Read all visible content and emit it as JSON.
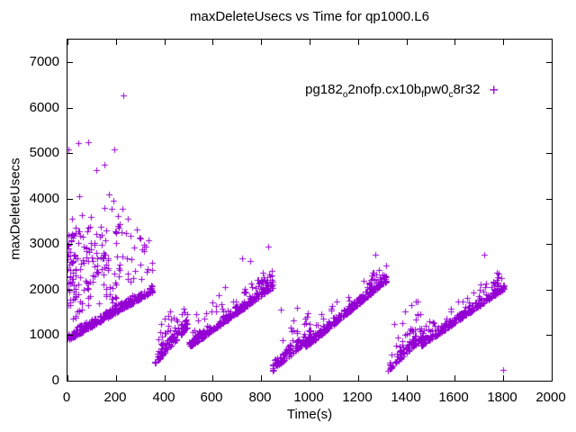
{
  "colors": {
    "background": "#ffffff",
    "axis": "#000000",
    "series_purple": "#9400D3"
  },
  "chart_data": {
    "type": "scatter",
    "title": "maxDeleteUsecs vs Time for qp1000.L6",
    "xlabel": "Time(s)",
    "ylabel": "maxDeleteUsecs",
    "xlim": [
      0,
      2000
    ],
    "ylim": [
      0,
      7500
    ],
    "xticks": [
      0,
      200,
      400,
      600,
      800,
      1000,
      1200,
      1400,
      1600,
      1800,
      2000
    ],
    "yticks": [
      0,
      1000,
      2000,
      3000,
      4000,
      5000,
      6000,
      7000
    ],
    "grid": false,
    "legend_position": "top-right-inside",
    "marker_glyph": "+",
    "marker_color": "#9400D3",
    "series": [
      {
        "name_parts": [
          {
            "text": "pg182"
          },
          {
            "sub": "o"
          },
          {
            "text": "2nofp.cx10b"
          },
          {
            "sub": "f"
          },
          {
            "text": "pw0"
          },
          {
            "sub": "c"
          },
          {
            "text": "8r32"
          }
        ],
        "color": "#9400D3",
        "pattern_note": "dense start cloud 0-350s then periodic sawtooth ramps; drops at ~350s, ~848s, ~1323s",
        "generator": {
          "seed": 42,
          "bands": [
            {
              "t0": 0,
              "t1": 352,
              "b0": 930,
              "b1": 2000,
              "d0": -45,
              "d1": 130,
              "p": 2.0,
              "n": 290
            },
            {
              "t0": 0,
              "t1": 35,
              "b0": 1350,
              "b1": 1380,
              "d0": 0,
              "d1": 2100,
              "p": 1.0,
              "n": 36
            },
            {
              "t0": 0,
              "t1": 228,
              "b0": 1420,
              "b1": 1700,
              "d0": 0,
              "d1": 1850,
              "p": 1.0,
              "n": 130
            },
            {
              "t0": 228,
              "t1": 352,
              "b0": 2050,
              "b1": 2250,
              "d0": 60,
              "d1": 1000,
              "p": 1.6,
              "n": 20
            },
            {
              "t0": 353,
              "t1": 497,
              "b0": 420,
              "b1": 1250,
              "d0": -80,
              "d1": 140,
              "p": 1.9,
              "n": 95
            },
            {
              "t0": 356,
              "t1": 497,
              "b0": 420,
              "b1": 1250,
              "d0": 110,
              "d1": 720,
              "p": 1.4,
              "n": 26
            },
            {
              "t0": 500,
              "t1": 848,
              "b0": 760,
              "b1": 2090,
              "d0": -40,
              "d1": 115,
              "p": 2.1,
              "n": 235
            },
            {
              "t0": 502,
              "t1": 848,
              "b0": 760,
              "b1": 2090,
              "d0": 70,
              "d1": 480,
              "p": 1.4,
              "n": 46
            },
            {
              "t0": 778,
              "t1": 848,
              "b0": 2060,
              "b1": 2190,
              "d0": 0,
              "d1": 150,
              "p": 1.2,
              "n": 14
            },
            {
              "t0": 846,
              "t1": 1002,
              "b0": 290,
              "b1": 1000,
              "d0": -70,
              "d1": 140,
              "p": 1.9,
              "n": 88
            },
            {
              "t0": 852,
              "t1": 1002,
              "b0": 290,
              "b1": 1000,
              "d0": 120,
              "d1": 660,
              "p": 1.4,
              "n": 22
            },
            {
              "t0": 975,
              "t1": 1318,
              "b0": 730,
              "b1": 2230,
              "d0": -40,
              "d1": 115,
              "p": 2.1,
              "n": 235
            },
            {
              "t0": 978,
              "t1": 1318,
              "b0": 730,
              "b1": 2230,
              "d0": 70,
              "d1": 430,
              "p": 1.4,
              "n": 40
            },
            {
              "t0": 1240,
              "t1": 1318,
              "b0": 2060,
              "b1": 2260,
              "d0": 0,
              "d1": 140,
              "p": 1.2,
              "n": 12
            },
            {
              "t0": 1325,
              "t1": 1465,
              "b0": 290,
              "b1": 1000,
              "d0": -70,
              "d1": 140,
              "p": 1.9,
              "n": 88
            },
            {
              "t0": 1330,
              "t1": 1465,
              "b0": 290,
              "b1": 1000,
              "d0": 120,
              "d1": 900,
              "p": 1.5,
              "n": 26
            },
            {
              "t0": 1455,
              "t1": 1805,
              "b0": 780,
              "b1": 2060,
              "d0": -40,
              "d1": 115,
              "p": 2.1,
              "n": 235
            },
            {
              "t0": 1458,
              "t1": 1805,
              "b0": 780,
              "b1": 2060,
              "d0": 70,
              "d1": 440,
              "p": 1.4,
              "n": 40
            },
            {
              "t0": 1700,
              "t1": 1805,
              "b0": 1990,
              "b1": 2100,
              "d0": 0,
              "d1": 140,
              "p": 1.2,
              "n": 12
            }
          ]
        },
        "outliers": [
          [
            2,
            5080
          ],
          [
            46,
            5225
          ],
          [
            87,
            5235
          ],
          [
            192,
            5093
          ],
          [
            230,
            6280
          ],
          [
            120,
            4640
          ],
          [
            151,
            4740
          ],
          [
            49,
            4060
          ],
          [
            170,
            4105
          ],
          [
            188,
            3960
          ],
          [
            152,
            3806
          ],
          [
            183,
            3780
          ],
          [
            227,
            3780
          ],
          [
            18,
            3560
          ],
          [
            60,
            3650
          ],
          [
            95,
            3610
          ],
          [
            210,
            3620
          ],
          [
            250,
            3560
          ],
          [
            160,
            3310
          ],
          [
            240,
            3240
          ],
          [
            262,
            3180
          ],
          [
            285,
            3330
          ],
          [
            300,
            3120
          ],
          [
            325,
            2950
          ],
          [
            403,
            1360
          ],
          [
            440,
            1394
          ],
          [
            533,
            1474
          ],
          [
            599,
            1714
          ],
          [
            623,
            1874
          ],
          [
            650,
            2060
          ],
          [
            722,
            2694
          ],
          [
            756,
            2626
          ],
          [
            828,
            2940
          ],
          [
            880,
            1560
          ],
          [
            948,
            1594
          ],
          [
            1223,
            2206
          ],
          [
            1262,
            2380
          ],
          [
            1273,
            2780
          ],
          [
            1395,
            1520
          ],
          [
            1421,
            1660
          ],
          [
            1438,
            1740
          ],
          [
            1722,
            2780
          ],
          [
            1799,
            240
          ]
        ]
      }
    ]
  }
}
